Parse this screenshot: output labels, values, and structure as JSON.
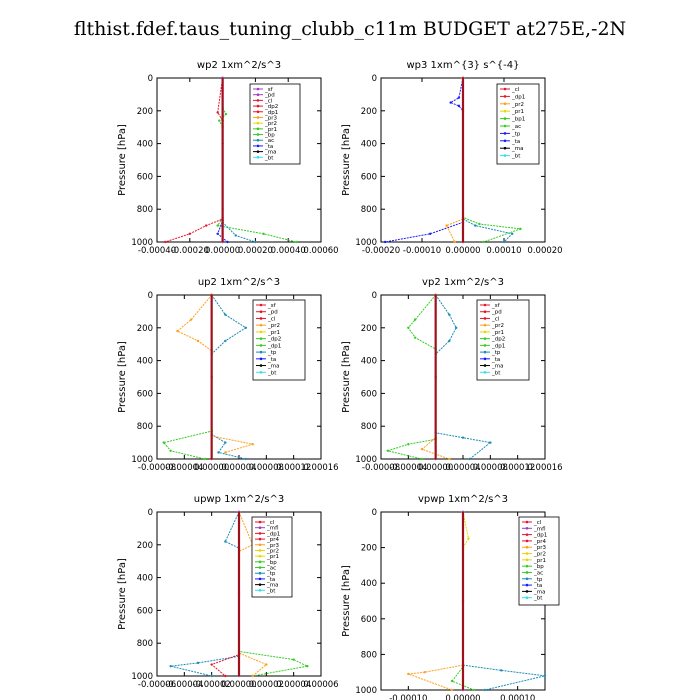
{
  "title": "flthist.fdef.taus_tuning_clubb_c11m  BUDGET at275E,-2N",
  "ylabel": "Pressure [hPa]",
  "colors": {
    "purple": "#9a3fc6",
    "red": "#e8142c",
    "orange": "#ff9f1c",
    "yellow": "#e8d800",
    "green": "#33cc22",
    "blue": "#1a1aff",
    "teal": "#1b8cb8",
    "cyan": "#33e0f0",
    "black": "#000000",
    "darkred": "#a0101a"
  },
  "chart_data": [
    {
      "type": "line",
      "title": "wp2   1xm^2/s^3",
      "xticks": [
        "-0.00040",
        "-0.00020",
        "0.00000",
        "0.00020",
        "0.00040",
        "0.00060"
      ],
      "xlim": [
        -0.0004,
        0.0006
      ],
      "ylim": [
        1000,
        0
      ],
      "yticks": [
        "0",
        "200",
        "400",
        "600",
        "800",
        "1000"
      ],
      "legend": [
        "_sf",
        "_pd",
        "_cl",
        "_dp2",
        "_dp1",
        "_pr3",
        "_pr2",
        "_pr1",
        "_bp",
        "_ac",
        "_ta",
        "_ma",
        "_bt"
      ],
      "legend_colors": [
        "purple",
        "purple",
        "red",
        "red",
        "red",
        "orange",
        "yellow",
        "green",
        "green",
        "teal",
        "blue",
        "black",
        "cyan"
      ],
      "series": [
        {
          "color": "green",
          "x": [
            0,
            0,
            2e-05,
            -2e-05,
            0,
            0,
            -3e-05,
            0.00025,
            0.00045
          ],
          "y": [
            0,
            180,
            220,
            260,
            300,
            850,
            900,
            950,
            1000
          ]
        },
        {
          "color": "red",
          "x": [
            0,
            -3e-05,
            0,
            0,
            -0.0001,
            -0.0002,
            -0.00035
          ],
          "y": [
            0,
            210,
            260,
            860,
            900,
            950,
            1000
          ]
        },
        {
          "color": "teal",
          "x": [
            0,
            0,
            8e-05,
            0.0002
          ],
          "y": [
            0,
            880,
            960,
            1000
          ]
        },
        {
          "color": "blue",
          "x": [
            0,
            0,
            -3e-05,
            3e-05
          ],
          "y": [
            0,
            870,
            950,
            1000
          ]
        },
        {
          "color": "purple",
          "x": [
            0,
            0,
            0,
            0
          ],
          "y": [
            0,
            400,
            800,
            1000
          ]
        }
      ]
    },
    {
      "type": "line",
      "title": "wp3   1xm^{3} s^{-4}",
      "xticks": [
        "-0.00020",
        "-0.00010",
        "0.00000",
        "0.00010",
        "0.00020"
      ],
      "xlim": [
        -0.0002,
        0.0002
      ],
      "ylim": [
        1000,
        0
      ],
      "yticks": [
        "0",
        "200",
        "400",
        "600",
        "800",
        "1000"
      ],
      "legend": [
        "_cl",
        "_dp1",
        "_pr2",
        "_pr1",
        "_bp1",
        "_ac",
        "_tp",
        "_ta",
        "_ma",
        "_bt"
      ],
      "legend_colors": [
        "red",
        "red",
        "orange",
        "yellow",
        "green",
        "green",
        "blue",
        "blue",
        "black",
        "cyan"
      ],
      "series": [
        {
          "color": "blue",
          "x": [
            0,
            -1e-05,
            -3e-05,
            -1e-05,
            0,
            0,
            -8e-05,
            -0.00019
          ],
          "y": [
            0,
            120,
            150,
            170,
            200,
            880,
            950,
            1000
          ]
        },
        {
          "color": "green",
          "x": [
            0,
            0,
            4e-05,
            0.00014,
            5e-05
          ],
          "y": [
            0,
            850,
            890,
            920,
            1000
          ]
        },
        {
          "color": "teal",
          "x": [
            0,
            0,
            3e-05,
            0.00012,
            0.0001
          ],
          "y": [
            0,
            860,
            900,
            950,
            1000
          ]
        },
        {
          "color": "orange",
          "x": [
            0,
            0,
            -4e-05,
            -2e-05
          ],
          "y": [
            0,
            860,
            900,
            1000
          ]
        },
        {
          "color": "red",
          "x": [
            0,
            0,
            0
          ],
          "y": [
            0,
            500,
            1000
          ]
        }
      ]
    },
    {
      "type": "line",
      "title": "up2   1xm^2/s^3",
      "xticks": [
        "-0.00008",
        "-0.00004",
        "0.00000",
        "0.00004",
        "0.00008",
        "0.00012",
        "0.00016"
      ],
      "xlim": [
        -8e-05,
        0.00016
      ],
      "ylim": [
        1000,
        0
      ],
      "yticks": [
        "0",
        "200",
        "400",
        "600",
        "800",
        "1000"
      ],
      "legend": [
        "_sf",
        "_pd",
        "_cl",
        "_pr2",
        "_pr1",
        "_dp2",
        "_dp1",
        "_tp",
        "_ta",
        "_ma",
        "_bt"
      ],
      "legend_colors": [
        "red",
        "red",
        "red",
        "orange",
        "yellow",
        "green",
        "green",
        "teal",
        "blue",
        "black",
        "cyan"
      ],
      "series": [
        {
          "color": "teal",
          "x": [
            0,
            2e-05,
            5e-05,
            2e-05,
            0,
            0,
            2e-05,
            1e-05,
            5e-05
          ],
          "y": [
            0,
            120,
            200,
            280,
            360,
            850,
            900,
            960,
            1000
          ]
        },
        {
          "color": "orange",
          "x": [
            0,
            -3e-05,
            -5e-05,
            -2e-05,
            0,
            0,
            6e-05,
            2e-05
          ],
          "y": [
            0,
            150,
            220,
            280,
            340,
            860,
            910,
            960
          ]
        },
        {
          "color": "green",
          "x": [
            0,
            0,
            -7e-05,
            -6e-05,
            -1e-05
          ],
          "y": [
            0,
            830,
            900,
            950,
            1000
          ]
        },
        {
          "color": "red",
          "x": [
            0,
            0,
            0
          ],
          "y": [
            0,
            500,
            1000
          ]
        }
      ]
    },
    {
      "type": "line",
      "title": "vp2   1xm^2/s^3",
      "xticks": [
        "-0.00008",
        "-0.00004",
        "0.00000",
        "0.00004",
        "0.00008",
        "0.00012",
        "0.00016"
      ],
      "xlim": [
        -8e-05,
        0.00016
      ],
      "ylim": [
        1000,
        0
      ],
      "yticks": [
        "0",
        "200",
        "400",
        "600",
        "800",
        "1000"
      ],
      "legend": [
        "_sf",
        "_pd",
        "_cl",
        "_pr2",
        "_pr1",
        "_dp2",
        "_dp1",
        "_tp",
        "_ta",
        "_ma",
        "_bt"
      ],
      "legend_colors": [
        "red",
        "red",
        "red",
        "orange",
        "yellow",
        "green",
        "green",
        "teal",
        "blue",
        "black",
        "cyan"
      ],
      "series": [
        {
          "color": "teal",
          "x": [
            0,
            2e-05,
            3e-05,
            2e-05,
            0,
            0,
            4e-05,
            8e-05,
            5e-05
          ],
          "y": [
            0,
            120,
            200,
            280,
            360,
            840,
            870,
            900,
            1000
          ]
        },
        {
          "color": "green",
          "x": [
            0,
            -3e-05,
            -4e-05,
            -3e-05,
            0,
            0,
            -4e-05,
            -7e-05,
            -2e-05
          ],
          "y": [
            0,
            150,
            200,
            260,
            330,
            880,
            910,
            950,
            1000
          ]
        },
        {
          "color": "orange",
          "x": [
            0,
            0,
            -2e-05,
            2e-05
          ],
          "y": [
            0,
            870,
            940,
            1000
          ]
        },
        {
          "color": "red",
          "x": [
            0,
            0,
            0
          ],
          "y": [
            0,
            500,
            1000
          ]
        }
      ]
    },
    {
      "type": "line",
      "title": "upwp   1xm^2/s^3",
      "xticks": [
        "-0.00006",
        "-0.00004",
        "-0.00002",
        "0.00000",
        "0.00002",
        "0.00004",
        "0.00006"
      ],
      "xlim": [
        -6e-05,
        6e-05
      ],
      "ylim": [
        1000,
        0
      ],
      "yticks": [
        "0",
        "200",
        "400",
        "600",
        "800",
        "1000"
      ],
      "legend": [
        "_cl",
        "_mfl",
        "_dp1",
        "_pr4",
        "_pr3",
        "_pr2",
        "_pr1",
        "_bp",
        "_ac",
        "_tp",
        "_ta",
        "_ma",
        "_bt"
      ],
      "legend_colors": [
        "red",
        "purple",
        "red",
        "red",
        "orange",
        "yellow",
        "yellow",
        "green",
        "green",
        "teal",
        "blue",
        "black",
        "cyan"
      ],
      "series": [
        {
          "color": "teal",
          "x": [
            0,
            -1e-05,
            0,
            0,
            -3e-05,
            -5e-05,
            -2e-05
          ],
          "y": [
            0,
            180,
            220,
            880,
            920,
            940,
            1000
          ]
        },
        {
          "color": "green",
          "x": [
            0,
            0,
            4e-05,
            5e-05,
            1e-05
          ],
          "y": [
            0,
            850,
            900,
            940,
            1000
          ]
        },
        {
          "color": "orange",
          "x": [
            0,
            1e-05,
            0,
            0,
            2e-05,
            1e-05
          ],
          "y": [
            0,
            200,
            240,
            860,
            930,
            1000
          ]
        },
        {
          "color": "red",
          "x": [
            0,
            0,
            -2e-05,
            -1e-05
          ],
          "y": [
            0,
            870,
            930,
            1000
          ]
        },
        {
          "color": "purple",
          "x": [
            0,
            0,
            0
          ],
          "y": [
            0,
            500,
            1000
          ]
        }
      ]
    },
    {
      "type": "line",
      "title": "vpwp   1xm^2/s^3",
      "xticks": [
        "-0.00010",
        "0.00000",
        "0.00010"
      ],
      "xlim": [
        -0.00015,
        0.00015
      ],
      "ylim": [
        1000,
        0
      ],
      "yticks": [
        "0",
        "200",
        "400",
        "600",
        "800",
        "1000"
      ],
      "legend": [
        "_cl",
        "_mfl",
        "_dp1",
        "_pr4",
        "_pr3",
        "_pr2",
        "_pr1",
        "_bp",
        "_ac",
        "_tp",
        "_ta",
        "_ma",
        "_bt"
      ],
      "legend_colors": [
        "red",
        "purple",
        "red",
        "red",
        "orange",
        "yellow",
        "yellow",
        "green",
        "green",
        "teal",
        "blue",
        "black",
        "cyan"
      ],
      "series": [
        {
          "color": "teal",
          "x": [
            0,
            0,
            7e-05,
            0.00015,
            4e-05
          ],
          "y": [
            0,
            860,
            890,
            920,
            1000
          ]
        },
        {
          "color": "orange",
          "x": [
            0,
            0,
            -7e-05,
            -0.0001,
            -2e-05
          ],
          "y": [
            0,
            860,
            900,
            910,
            1000
          ]
        },
        {
          "color": "green",
          "x": [
            0,
            0,
            -2e-05,
            2e-05
          ],
          "y": [
            0,
            870,
            950,
            1000
          ]
        },
        {
          "color": "yellow",
          "x": [
            0,
            1e-05,
            0,
            0
          ],
          "y": [
            0,
            150,
            200,
            1000
          ]
        },
        {
          "color": "purple",
          "x": [
            0,
            0,
            0
          ],
          "y": [
            0,
            500,
            1000
          ]
        }
      ]
    }
  ]
}
